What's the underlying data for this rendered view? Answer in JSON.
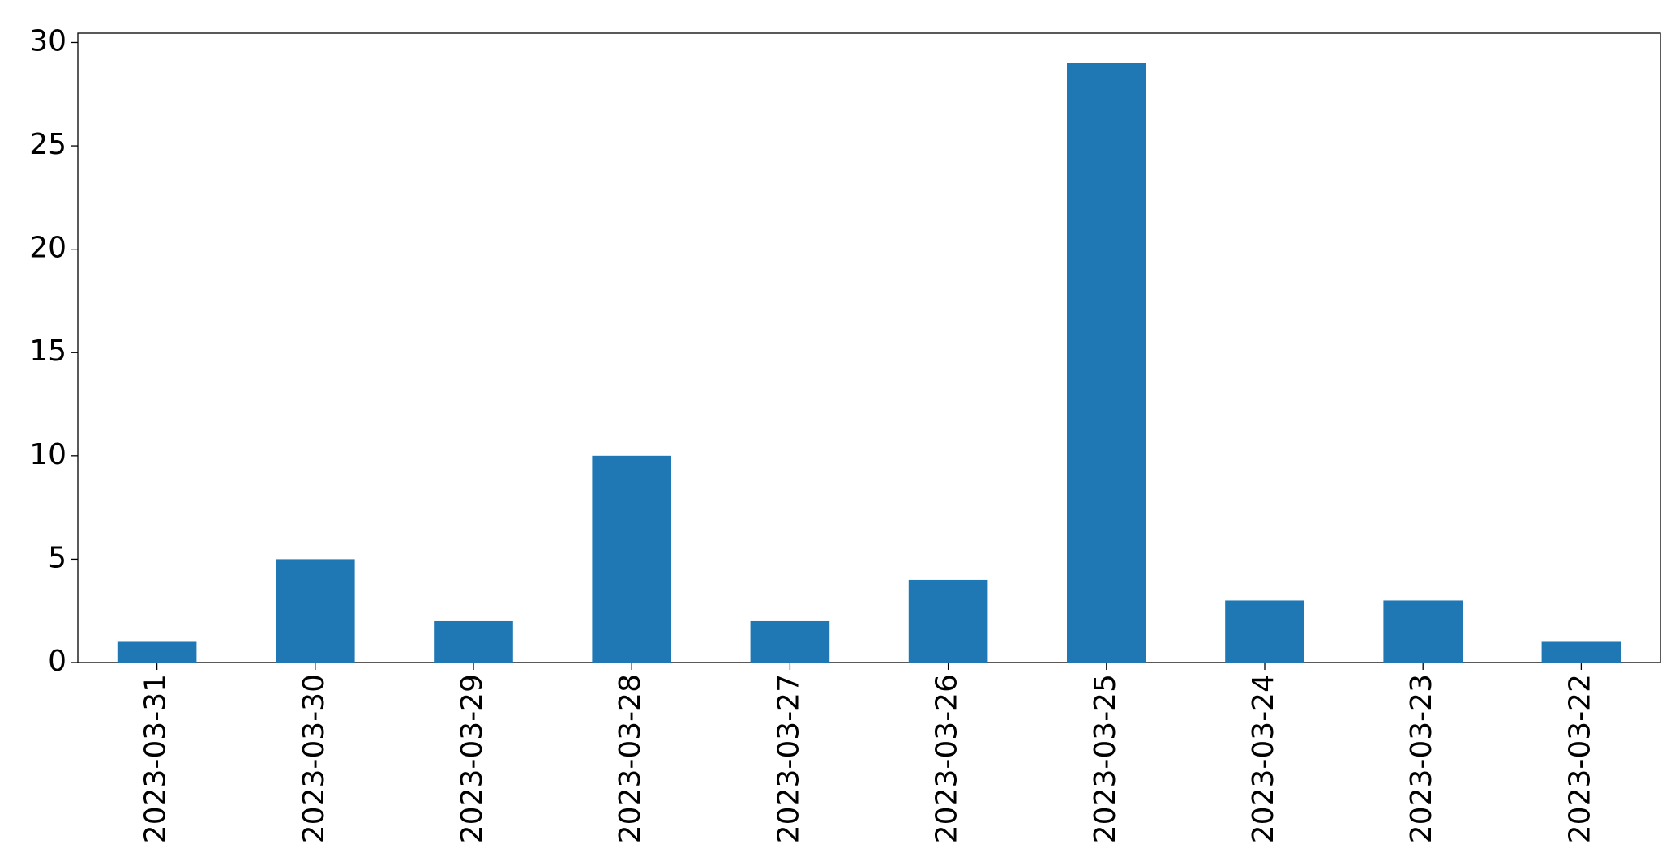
{
  "chart_data": {
    "type": "bar",
    "categories": [
      "2023-03-31",
      "2023-03-30",
      "2023-03-29",
      "2023-03-28",
      "2023-03-27",
      "2023-03-26",
      "2023-03-25",
      "2023-03-24",
      "2023-03-23",
      "2023-03-22"
    ],
    "values": [
      1,
      5,
      2,
      10,
      2,
      4,
      29,
      3,
      3,
      1
    ],
    "color": "#1f77b4",
    "ylim": [
      0,
      30.45
    ],
    "yticks": [
      0,
      5,
      10,
      15,
      20,
      25,
      30
    ],
    "grid": false
  }
}
